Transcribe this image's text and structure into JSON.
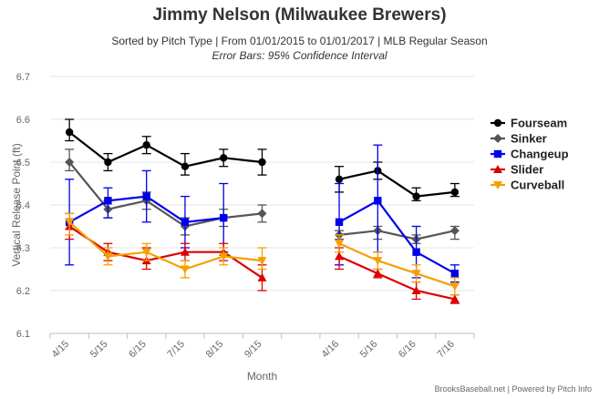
{
  "header": {
    "title": "Jimmy Nelson (Milwaukee Brewers)",
    "subtitle": "Sorted by Pitch Type | From 01/01/2015 to 01/01/2017 | MLB Regular Season",
    "subtitle2": "Error Bars: 95% Confidence Interval"
  },
  "footer": {
    "credit": "BrooksBaseball.net | Powered by Pitch Info"
  },
  "chart_data": {
    "type": "line",
    "title": "Jimmy Nelson (Milwaukee Brewers)",
    "xlabel": "Month",
    "ylabel": "Vertical Release Point (ft)",
    "ylim": [
      6.1,
      6.7
    ],
    "yticks": [
      "6.1",
      "6.2",
      "6.3",
      "6.4",
      "6.5",
      "6.6",
      "6.7"
    ],
    "grid": "horizontal",
    "legend": "right",
    "categories": [
      "4/15",
      "5/15",
      "6/15",
      "7/15",
      "8/15",
      "9/15",
      "",
      "4/16",
      "5/16",
      "6/16",
      "7/16"
    ],
    "series": [
      {
        "name": "Fourseam",
        "color": "#000000",
        "marker": "circle",
        "values": [
          6.57,
          6.5,
          6.54,
          6.49,
          6.51,
          6.5,
          null,
          6.46,
          6.48,
          6.42,
          6.43
        ],
        "low": [
          6.55,
          6.48,
          6.52,
          6.47,
          6.49,
          6.47,
          null,
          6.43,
          6.46,
          6.41,
          6.42
        ],
        "high": [
          6.6,
          6.52,
          6.56,
          6.52,
          6.53,
          6.53,
          null,
          6.49,
          6.5,
          6.44,
          6.45
        ]
      },
      {
        "name": "Sinker",
        "color": "#555555",
        "marker": "diamond",
        "values": [
          6.5,
          6.39,
          6.41,
          6.35,
          6.37,
          6.38,
          null,
          6.33,
          6.34,
          6.32,
          6.34
        ],
        "low": [
          6.48,
          6.37,
          6.39,
          6.33,
          6.35,
          6.36,
          null,
          6.32,
          6.32,
          6.31,
          6.32
        ],
        "high": [
          6.53,
          6.41,
          6.43,
          6.37,
          6.39,
          6.4,
          null,
          6.34,
          6.35,
          6.33,
          6.35
        ]
      },
      {
        "name": "Changeup",
        "color": "#0000ee",
        "marker": "square",
        "values": [
          6.36,
          6.41,
          6.42,
          6.36,
          6.37,
          null,
          null,
          6.36,
          6.41,
          6.29,
          6.24
        ],
        "low": [
          6.26,
          6.37,
          6.36,
          6.3,
          6.29,
          null,
          null,
          6.26,
          6.29,
          6.23,
          6.22
        ],
        "high": [
          6.46,
          6.44,
          6.48,
          6.42,
          6.45,
          null,
          null,
          6.45,
          6.54,
          6.35,
          6.26
        ]
      },
      {
        "name": "Slider",
        "color": "#dd0000",
        "marker": "triangle",
        "values": [
          6.35,
          6.29,
          6.27,
          6.29,
          6.29,
          6.23,
          null,
          6.28,
          6.24,
          6.2,
          6.18
        ],
        "low": [
          6.32,
          6.27,
          6.25,
          6.27,
          6.27,
          6.2,
          null,
          6.25,
          6.23,
          6.18,
          6.17
        ],
        "high": [
          6.38,
          6.31,
          6.3,
          6.31,
          6.31,
          6.26,
          null,
          6.3,
          6.25,
          6.22,
          6.19
        ]
      },
      {
        "name": "Curveball",
        "color": "#f5a000",
        "marker": "triangle-down",
        "values": [
          6.36,
          6.28,
          6.29,
          6.25,
          6.28,
          6.27,
          null,
          6.31,
          6.27,
          6.24,
          6.21
        ],
        "low": [
          6.33,
          6.26,
          6.27,
          6.23,
          6.26,
          6.25,
          null,
          6.29,
          6.25,
          6.22,
          6.19
        ],
        "high": [
          6.38,
          6.3,
          6.31,
          6.27,
          6.3,
          6.3,
          null,
          6.33,
          6.29,
          6.26,
          6.23
        ]
      }
    ]
  }
}
